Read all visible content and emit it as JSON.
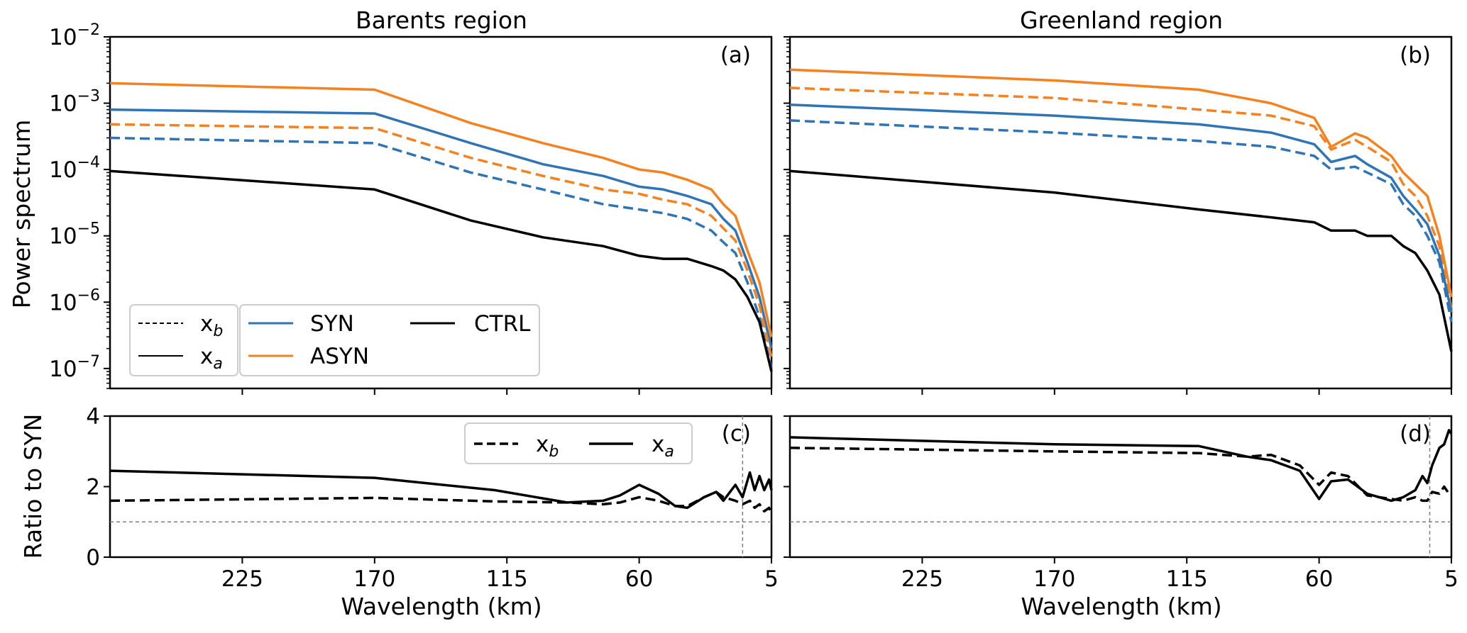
{
  "colors": {
    "SYN": "#2f75b5",
    "ASYN": "#f5811f",
    "CTRL": "#000000",
    "reference": "#7f7f7f"
  },
  "chart_data": [
    {
      "id": "a",
      "type": "line",
      "title": "Barents region",
      "panel_label": "(a)",
      "xlabel": "",
      "ylabel": "Power spectrum",
      "y_scale": "log",
      "ylim": [
        5e-08,
        0.01
      ],
      "x_direction": "wavelength decreasing to the right",
      "x": [
        280,
        170,
        130,
        100,
        75,
        60,
        50,
        40,
        30,
        25,
        20,
        15,
        10,
        5
      ],
      "xticks": [
        "225",
        "170",
        "115",
        "60",
        "5"
      ],
      "yticks": [
        "10",
        "10",
        "10",
        "10",
        "10",
        "10"
      ],
      "ytick_exponents": [
        "-7",
        "-6",
        "-5",
        "-4",
        "-3",
        "-2"
      ],
      "legend": [
        {
          "label": "x",
          "subscript": "b",
          "style": "dashed"
        },
        {
          "label": "x",
          "subscript": "a",
          "style": "solid"
        },
        {
          "label": "SYN",
          "color": "SYN"
        },
        {
          "label": "ASYN",
          "color": "ASYN"
        },
        {
          "label": "CTRL",
          "color": "CTRL"
        }
      ],
      "legend_position": "lower-left",
      "series": [
        {
          "name": "ASYN",
          "state": "x_a",
          "values": [
            0.002,
            0.0016,
            0.0005,
            0.00025,
            0.00015,
            0.0001,
            9e-05,
            7e-05,
            5e-05,
            3e-05,
            2e-05,
            6e-06,
            2e-06,
            3e-07
          ]
        },
        {
          "name": "SYN",
          "state": "x_a",
          "values": [
            0.0008,
            0.0007,
            0.00025,
            0.00012,
            8e-05,
            5.5e-05,
            5e-05,
            4e-05,
            3e-05,
            1.8e-05,
            1.2e-05,
            4e-06,
            1.2e-06,
            2e-07
          ]
        },
        {
          "name": "ASYN",
          "state": "x_b",
          "values": [
            0.00048,
            0.00042,
            0.00015,
            8e-05,
            5e-05,
            4.3e-05,
            3.5e-05,
            3e-05,
            2e-05,
            1.3e-05,
            8.5e-06,
            3e-06,
            9e-07,
            1.5e-07
          ]
        },
        {
          "name": "SYN",
          "state": "x_b",
          "values": [
            0.0003,
            0.00025,
            9e-05,
            5e-05,
            3e-05,
            2.5e-05,
            2.2e-05,
            1.8e-05,
            1.2e-05,
            8e-06,
            5.5e-06,
            2e-06,
            6e-07,
            1e-07
          ]
        },
        {
          "name": "CTRL",
          "state": "x_a",
          "values": [
            9.5e-05,
            5e-05,
            1.7e-05,
            9.5e-06,
            7e-06,
            5e-06,
            4.5e-06,
            4.5e-06,
            3.5e-06,
            3e-06,
            2.2e-06,
            1.2e-06,
            5e-07,
            9e-08
          ]
        }
      ]
    },
    {
      "id": "b",
      "type": "line",
      "title": "Greenland region",
      "panel_label": "(b)",
      "xlabel": "",
      "ylabel": "",
      "y_scale": "log",
      "ylim": [
        5e-08,
        0.01
      ],
      "x": [
        280,
        170,
        110,
        80,
        62,
        55,
        45,
        40,
        30,
        25,
        20,
        15,
        10,
        5
      ],
      "xticks": [
        "225",
        "170",
        "115",
        "60",
        "5"
      ],
      "series": [
        {
          "name": "ASYN",
          "state": "x_a",
          "values": [
            0.0032,
            0.0022,
            0.0016,
            0.001,
            0.0006,
            0.00022,
            0.00035,
            0.0003,
            0.00016,
            9e-05,
            6e-05,
            4e-05,
            1e-05,
            1.2e-06
          ]
        },
        {
          "name": "ASYN",
          "state": "x_b",
          "values": [
            0.0017,
            0.0012,
            0.0008,
            0.00065,
            0.00045,
            0.0002,
            0.00028,
            0.00022,
            0.00013,
            6e-05,
            4e-05,
            2e-05,
            7e-06,
            8e-07
          ]
        },
        {
          "name": "SYN",
          "state": "x_a",
          "values": [
            0.00095,
            0.00065,
            0.00048,
            0.00036,
            0.00024,
            0.00013,
            0.00016,
            0.00012,
            7.5e-05,
            4e-05,
            2.5e-05,
            1.5e-05,
            5e-06,
            7e-07
          ]
        },
        {
          "name": "SYN",
          "state": "x_b",
          "values": [
            0.00055,
            0.00036,
            0.00027,
            0.00022,
            0.00016,
            0.0001,
            0.00011,
            9e-05,
            6e-05,
            3e-05,
            2e-05,
            1e-05,
            4e-06,
            5e-07
          ]
        },
        {
          "name": "CTRL",
          "state": "x_a",
          "values": [
            9.5e-05,
            4.5e-05,
            2.5e-05,
            1.9e-05,
            1.6e-05,
            1.2e-05,
            1.2e-05,
            1e-05,
            1e-05,
            7e-06,
            5.5e-06,
            3e-06,
            1.3e-06,
            1.8e-07
          ]
        }
      ]
    },
    {
      "id": "c",
      "type": "line",
      "panel_label": "(c)",
      "xlabel": "Wavelength (km)",
      "ylabel": "Ratio to SYN",
      "ylim": [
        0,
        4
      ],
      "yticks": [
        "0",
        "2",
        "4"
      ],
      "xticks": [
        "225",
        "170",
        "115",
        "60",
        "5"
      ],
      "reference_line_y": 1,
      "vertical_marker_x": 17,
      "legend": [
        {
          "label": "x",
          "subscript": "b",
          "style": "dashed"
        },
        {
          "label": "x",
          "subscript": "a",
          "style": "solid"
        }
      ],
      "legend_position": "top-right",
      "x": [
        280,
        170,
        120,
        90,
        75,
        68,
        60,
        52,
        45,
        40,
        33,
        28,
        25,
        20,
        17,
        14,
        12,
        10,
        8,
        6,
        5
      ],
      "series": [
        {
          "name": "x_b",
          "style": "dashed",
          "values": [
            1.6,
            1.68,
            1.58,
            1.55,
            1.5,
            1.55,
            1.7,
            1.6,
            1.45,
            1.45,
            1.7,
            1.85,
            1.7,
            1.6,
            1.5,
            1.6,
            1.4,
            1.5,
            1.3,
            1.4,
            1.2
          ]
        },
        {
          "name": "x_a",
          "style": "solid",
          "values": [
            2.45,
            2.25,
            1.9,
            1.55,
            1.6,
            1.75,
            2.05,
            1.8,
            1.45,
            1.4,
            1.7,
            1.85,
            1.6,
            2.05,
            1.7,
            2.4,
            1.9,
            2.3,
            1.9,
            2.2,
            1.9
          ]
        }
      ]
    },
    {
      "id": "d",
      "type": "line",
      "panel_label": "(d)",
      "xlabel": "Wavelength (km)",
      "ylabel": "",
      "ylim": [
        0,
        4
      ],
      "xticks": [
        "225",
        "170",
        "115",
        "60",
        "5"
      ],
      "reference_line_y": 1,
      "vertical_marker_x": 14,
      "x": [
        280,
        170,
        110,
        90,
        80,
        68,
        60,
        55,
        48,
        40,
        30,
        25,
        20,
        17,
        15,
        13,
        10,
        8,
        6,
        5
      ],
      "series": [
        {
          "name": "x_b",
          "style": "dashed",
          "values": [
            3.1,
            3.0,
            2.95,
            2.85,
            2.9,
            2.6,
            2.05,
            2.4,
            2.3,
            1.75,
            1.65,
            1.6,
            1.7,
            1.6,
            1.6,
            1.85,
            1.8,
            2.0,
            1.8,
            1.8
          ]
        },
        {
          "name": "x_a",
          "style": "solid",
          "values": [
            3.4,
            3.2,
            3.15,
            2.85,
            2.75,
            2.45,
            1.65,
            2.15,
            2.2,
            1.8,
            1.6,
            1.7,
            1.9,
            2.3,
            2.1,
            2.6,
            3.1,
            3.2,
            3.6,
            3.5
          ]
        }
      ]
    }
  ]
}
